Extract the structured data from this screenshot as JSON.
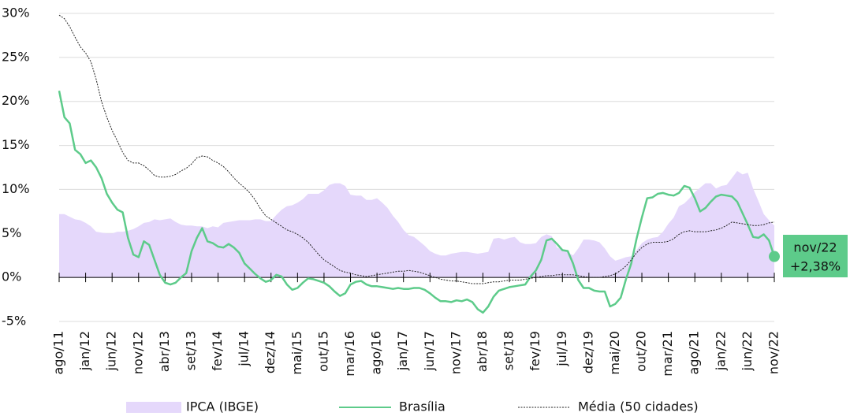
{
  "chart_data": {
    "type": "line",
    "categories": [
      "ago/11",
      null,
      null,
      null,
      null,
      "jan/12",
      null,
      null,
      null,
      null,
      "jun/12",
      null,
      null,
      null,
      null,
      "nov/12",
      null,
      null,
      null,
      null,
      "abr/13",
      null,
      null,
      null,
      null,
      "set/13",
      null,
      null,
      null,
      null,
      "fev/14",
      null,
      null,
      null,
      null,
      "jul/14",
      null,
      null,
      null,
      null,
      "dez/14",
      null,
      null,
      null,
      null,
      "mai/15",
      null,
      null,
      null,
      null,
      "out/15",
      null,
      null,
      null,
      null,
      "mar/16",
      null,
      null,
      null,
      null,
      "ago/16",
      null,
      null,
      null,
      null,
      "jan/17",
      null,
      null,
      null,
      null,
      "jun/17",
      null,
      null,
      null,
      null,
      "nov/17",
      null,
      null,
      null,
      null,
      "abr/18",
      null,
      null,
      null,
      null,
      "set/18",
      null,
      null,
      null,
      null,
      "fev/19",
      null,
      null,
      null,
      null,
      "jul/19",
      null,
      null,
      null,
      null,
      "dez/19",
      null,
      null,
      null,
      null,
      "mai/20",
      null,
      null,
      null,
      null,
      "out/20",
      null,
      null,
      null,
      null,
      "mar/21",
      null,
      null,
      null,
      null,
      "ago/21",
      null,
      null,
      null,
      null,
      "jan/22",
      null,
      null,
      null,
      null,
      "jun/22",
      null,
      null,
      null,
      null,
      "nov/22"
    ],
    "series": [
      {
        "name": "IPCA (IBGE)",
        "style": "area",
        "color": "#e5d8fb",
        "values": [
          7.2,
          7.2,
          6.9,
          6.6,
          6.5,
          6.2,
          5.8,
          5.2,
          5.1,
          5.0,
          5.0,
          5.2,
          5.2,
          5.3,
          5.5,
          5.8,
          6.2,
          6.3,
          6.6,
          6.5,
          6.6,
          6.7,
          6.3,
          6.0,
          5.9,
          5.9,
          5.8,
          5.8,
          5.6,
          5.8,
          5.7,
          6.2,
          6.3,
          6.4,
          6.5,
          6.5,
          6.5,
          6.6,
          6.6,
          6.4,
          6.4,
          7.1,
          7.7,
          8.1,
          8.2,
          8.5,
          8.9,
          9.5,
          9.5,
          9.5,
          9.9,
          10.5,
          10.7,
          10.7,
          10.4,
          9.4,
          9.3,
          9.3,
          8.8,
          8.8,
          9.0,
          8.5,
          7.9,
          7.0,
          6.3,
          5.4,
          4.8,
          4.6,
          4.1,
          3.6,
          3.0,
          2.7,
          2.5,
          2.5,
          2.7,
          2.8,
          2.9,
          2.9,
          2.8,
          2.7,
          2.8,
          2.9,
          4.4,
          4.5,
          4.3,
          4.5,
          4.6,
          4.0,
          3.8,
          3.8,
          3.9,
          4.6,
          4.9,
          4.7,
          3.4,
          3.2,
          2.9,
          2.5,
          3.3,
          4.3,
          4.3,
          4.2,
          4.0,
          3.3,
          2.4,
          1.9,
          2.1,
          2.3,
          2.4,
          3.1,
          3.9,
          4.3,
          4.5,
          4.6,
          5.2,
          6.1,
          6.8,
          8.1,
          8.4,
          9.0,
          9.7,
          10.2,
          10.7,
          10.7,
          10.1,
          10.4,
          10.5,
          11.3,
          12.1,
          11.7,
          11.9,
          10.1,
          8.7,
          7.2,
          6.5,
          5.9
        ]
      },
      {
        "name": "Brasília",
        "style": "line",
        "color": "#5dcb8a",
        "values": [
          21.2,
          18.2,
          17.5,
          14.5,
          14,
          13,
          13.3,
          12.5,
          11.3,
          9.5,
          8.5,
          7.7,
          7.4,
          4.5,
          2.6,
          2.3,
          4.1,
          3.7,
          2,
          0.3,
          -0.6,
          -0.8,
          -0.6,
          0,
          0.5,
          3,
          4.5,
          5.6,
          4.1,
          3.9,
          3.5,
          3.4,
          3.8,
          3.4,
          2.8,
          1.6,
          1,
          0.4,
          -0.1,
          -0.5,
          -0.3,
          0.3,
          0.1,
          -0.8,
          -1.4,
          -1.2,
          -0.6,
          -0.1,
          -0.2,
          -0.4,
          -0.6,
          -1,
          -1.6,
          -2.1,
          -1.8,
          -0.8,
          -0.5,
          -0.4,
          -0.8,
          -1,
          -1,
          -1.1,
          -1.2,
          -1.3,
          -1.2,
          -1.3,
          -1.3,
          -1.2,
          -1.2,
          -1.4,
          -1.8,
          -2.3,
          -2.7,
          -2.7,
          -2.8,
          -2.6,
          -2.7,
          -2.5,
          -2.8,
          -3.6,
          -4,
          -3.3,
          -2.2,
          -1.5,
          -1.3,
          -1.1,
          -1,
          -0.9,
          -0.8,
          0.1,
          0.8,
          2,
          4.2,
          4.4,
          3.8,
          3.1,
          3,
          1.6,
          -0.3,
          -1.2,
          -1.2,
          -1.5,
          -1.6,
          -1.6,
          -3.3,
          -3,
          -2.3,
          -0.2,
          1.6,
          4.4,
          6.8,
          9,
          9.1,
          9.5,
          9.6,
          9.4,
          9.3,
          9.6,
          10.4,
          10.2,
          9,
          7.5,
          7.9,
          8.6,
          9.2,
          9.4,
          9.3,
          9.2,
          8.6,
          7.3,
          6,
          4.6,
          4.5,
          4.9,
          4.2,
          2.38
        ]
      },
      {
        "name": "Média (50 cidades)",
        "style": "dotted",
        "color": "#222222",
        "values": [
          29.8,
          29.4,
          28.5,
          27.3,
          26.2,
          25.5,
          24.5,
          22.5,
          20,
          18.2,
          16.7,
          15.5,
          14.2,
          13.3,
          13,
          13,
          12.7,
          12.2,
          11.6,
          11.4,
          11.4,
          11.5,
          11.7,
          12.1,
          12.4,
          12.9,
          13.6,
          13.8,
          13.7,
          13.3,
          13,
          12.6,
          12,
          11.3,
          10.7,
          10.2,
          9.6,
          8.8,
          7.8,
          7.0,
          6.6,
          6.2,
          5.8,
          5.4,
          5.2,
          4.9,
          4.5,
          4.0,
          3.3,
          2.6,
          2.0,
          1.6,
          1.2,
          0.8,
          0.6,
          0.5,
          0.3,
          0.2,
          0.1,
          0.2,
          0.3,
          0.4,
          0.5,
          0.6,
          0.7,
          0.7,
          0.8,
          0.7,
          0.6,
          0.4,
          0.2,
          0,
          -0.2,
          -0.3,
          -0.4,
          -0.4,
          -0.5,
          -0.6,
          -0.7,
          -0.7,
          -0.7,
          -0.6,
          -0.5,
          -0.5,
          -0.4,
          -0.3,
          -0.3,
          -0.3,
          -0.2,
          -0.1,
          0,
          0.1,
          0.2,
          0.2,
          0.3,
          0.3,
          0.3,
          0.3,
          0.2,
          0.1,
          0,
          0,
          0,
          0.1,
          0.2,
          0.4,
          0.8,
          1.3,
          2.0,
          2.8,
          3.4,
          3.8,
          4.0,
          4.0,
          4.0,
          4.1,
          4.4,
          4.9,
          5.2,
          5.3,
          5.2,
          5.2,
          5.2,
          5.3,
          5.4,
          5.6,
          5.9,
          6.3,
          6.2,
          6.1,
          6.0,
          5.9,
          5.9,
          6.0,
          6.2,
          6.3
        ]
      }
    ],
    "annotations": [
      "nov/22",
      "+2,38%"
    ],
    "ylim": [
      -5,
      30
    ],
    "yticks": [
      {
        "value": -5,
        "label": "-5%"
      },
      {
        "value": 0,
        "label": "0%"
      },
      {
        "value": 5,
        "label": "5%"
      },
      {
        "value": 10,
        "label": "10%"
      },
      {
        "value": 15,
        "label": "15%"
      },
      {
        "value": 20,
        "label": "20%"
      },
      {
        "value": 25,
        "label": "25%"
      },
      {
        "value": 30,
        "label": "30%"
      }
    ],
    "grid": true
  }
}
